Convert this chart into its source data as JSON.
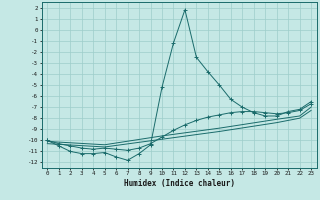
{
  "xlabel": "Humidex (Indice chaleur)",
  "bg_color": "#c5e8e5",
  "grid_color": "#9ececa",
  "line_color": "#1a6b6b",
  "xlim": [
    -0.5,
    23.5
  ],
  "ylim": [
    -12.5,
    2.5
  ],
  "xticks": [
    0,
    1,
    2,
    3,
    4,
    5,
    6,
    7,
    8,
    9,
    10,
    11,
    12,
    13,
    14,
    15,
    16,
    17,
    18,
    19,
    20,
    21,
    22,
    23
  ],
  "yticks": [
    2,
    1,
    0,
    -1,
    -2,
    -3,
    -4,
    -5,
    -6,
    -7,
    -8,
    -9,
    -10,
    -11,
    -12
  ],
  "series1": [
    [
      0,
      -10.0
    ],
    [
      1,
      -10.5
    ],
    [
      2,
      -11.0
    ],
    [
      3,
      -11.2
    ],
    [
      4,
      -11.2
    ],
    [
      5,
      -11.1
    ],
    [
      6,
      -11.5
    ],
    [
      7,
      -11.8
    ],
    [
      8,
      -11.2
    ],
    [
      9,
      -10.4
    ],
    [
      10,
      -5.2
    ],
    [
      11,
      -1.2
    ],
    [
      12,
      1.8
    ],
    [
      13,
      -2.5
    ],
    [
      14,
      -3.8
    ],
    [
      15,
      -5.0
    ],
    [
      16,
      -6.3
    ],
    [
      17,
      -7.0
    ],
    [
      18,
      -7.5
    ],
    [
      19,
      -7.8
    ],
    [
      20,
      -7.8
    ],
    [
      21,
      -7.4
    ],
    [
      22,
      -7.2
    ],
    [
      23,
      -6.5
    ]
  ],
  "series2": [
    [
      0,
      -10.0
    ],
    [
      1,
      -10.3
    ],
    [
      2,
      -10.5
    ],
    [
      3,
      -10.7
    ],
    [
      4,
      -10.8
    ],
    [
      5,
      -10.7
    ],
    [
      6,
      -10.8
    ],
    [
      7,
      -10.9
    ],
    [
      8,
      -10.7
    ],
    [
      9,
      -10.3
    ],
    [
      10,
      -9.7
    ],
    [
      11,
      -9.1
    ],
    [
      12,
      -8.6
    ],
    [
      13,
      -8.2
    ],
    [
      14,
      -7.9
    ],
    [
      15,
      -7.7
    ],
    [
      16,
      -7.5
    ],
    [
      17,
      -7.4
    ],
    [
      18,
      -7.4
    ],
    [
      19,
      -7.5
    ],
    [
      20,
      -7.6
    ],
    [
      21,
      -7.5
    ],
    [
      22,
      -7.3
    ],
    [
      23,
      -6.7
    ]
  ],
  "series3": [
    [
      0,
      -10.1
    ],
    [
      5,
      -10.4
    ],
    [
      10,
      -9.6
    ],
    [
      15,
      -8.9
    ],
    [
      20,
      -8.1
    ],
    [
      22,
      -7.8
    ],
    [
      23,
      -7.0
    ]
  ],
  "series4": [
    [
      0,
      -10.3
    ],
    [
      5,
      -10.6
    ],
    [
      10,
      -9.9
    ],
    [
      15,
      -9.2
    ],
    [
      20,
      -8.4
    ],
    [
      22,
      -8.0
    ],
    [
      23,
      -7.3
    ]
  ]
}
